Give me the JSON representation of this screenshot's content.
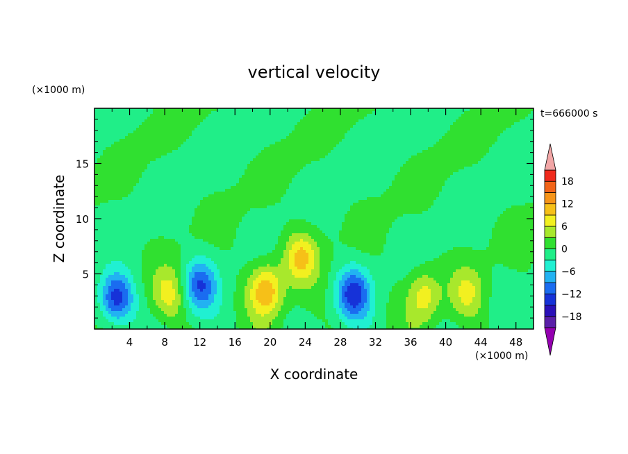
{
  "chart_data": {
    "type": "heatmap",
    "title": "vertical velocity",
    "xlabel": "X coordinate",
    "ylabel": "Z coordinate",
    "x_unit": "(×1000 m)",
    "y_unit": "(×1000 m)",
    "time_label": "t=666000 s",
    "xlim": [
      0,
      50
    ],
    "ylim": [
      0,
      20
    ],
    "x_ticks": [
      4,
      8,
      12,
      16,
      20,
      24,
      28,
      32,
      36,
      40,
      44,
      48
    ],
    "y_ticks": [
      5,
      10,
      15
    ],
    "grid": false,
    "legend": "right colorbar",
    "colorbar": {
      "levels": [
        -21,
        -18,
        -15,
        -12,
        -9,
        -6,
        -3,
        0,
        3,
        6,
        9,
        12,
        15,
        18,
        21
      ],
      "tick_values": [
        -18,
        -12,
        -6,
        0,
        6,
        12,
        18
      ],
      "tick_labels": [
        "−18",
        "−12",
        "−6",
        "0",
        "6",
        "12",
        "18"
      ],
      "under_color": "#9400b0",
      "over_color": "#f2a6a6",
      "colors": [
        "#5a1fa8",
        "#2a10b8",
        "#1632d8",
        "#1a6cf0",
        "#22b2f2",
        "#20f0d2",
        "#20ee88",
        "#30e030",
        "#a8e82c",
        "#f2f020",
        "#f6c018",
        "#f69418",
        "#f26418",
        "#f02a1c"
      ]
    },
    "features": [
      {
        "x": 2.5,
        "z": 2.8,
        "amplitude": -14
      },
      {
        "x": 8.5,
        "z": 3.2,
        "amplitude": 7
      },
      {
        "x": 12.0,
        "z": 4.0,
        "amplitude": -11
      },
      {
        "x": 19.5,
        "z": 3.5,
        "amplitude": 12
      },
      {
        "x": 23.5,
        "z": 6.5,
        "amplitude": 10
      },
      {
        "x": 29.5,
        "z": 3.2,
        "amplitude": -13
      },
      {
        "x": 37.5,
        "z": 3.0,
        "amplitude": 8
      },
      {
        "x": 42.5,
        "z": 3.3,
        "amplitude": 6
      }
    ]
  }
}
